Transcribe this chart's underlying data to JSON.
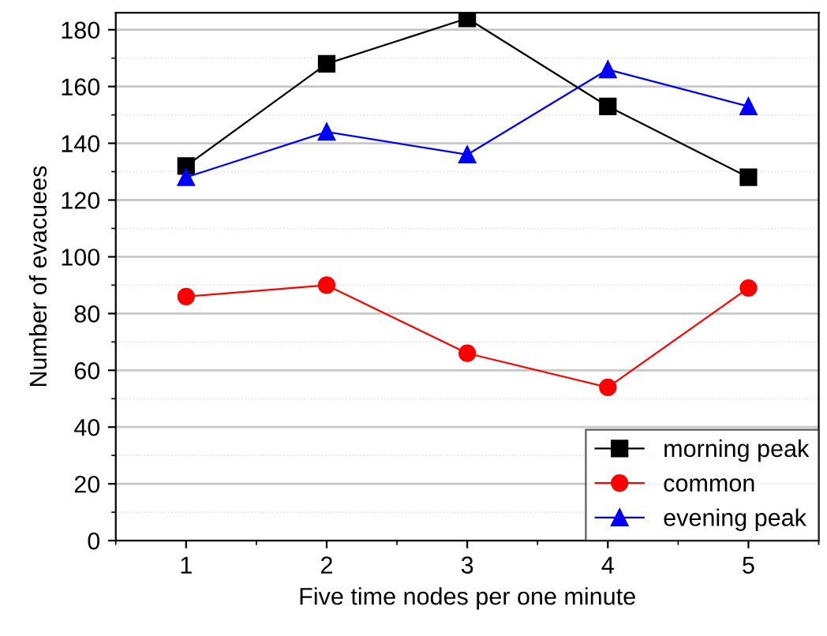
{
  "chart_data": {
    "type": "line",
    "xlabel": "Five time nodes per one minute",
    "ylabel": "Number of evacuees",
    "x": [
      1,
      2,
      3,
      4,
      5
    ],
    "xlim": [
      0.5,
      5.5
    ],
    "xticks": [
      1,
      2,
      3,
      4,
      5
    ],
    "ylim": [
      0,
      186
    ],
    "yticks": [
      0,
      20,
      40,
      60,
      80,
      100,
      120,
      140,
      160,
      180
    ],
    "grid": "y",
    "legend": "bottom right",
    "series": [
      {
        "name": "morning peak",
        "color": "#000000",
        "marker": "square",
        "values": [
          132,
          168,
          184,
          153,
          128
        ]
      },
      {
        "name": "common",
        "color": "#ff0000",
        "marker": "circle",
        "values": [
          86,
          90,
          66,
          54,
          89
        ]
      },
      {
        "name": "evening peak",
        "color": "#0000ff",
        "marker": "triangle",
        "values": [
          128,
          144,
          136,
          166,
          153
        ]
      }
    ]
  }
}
